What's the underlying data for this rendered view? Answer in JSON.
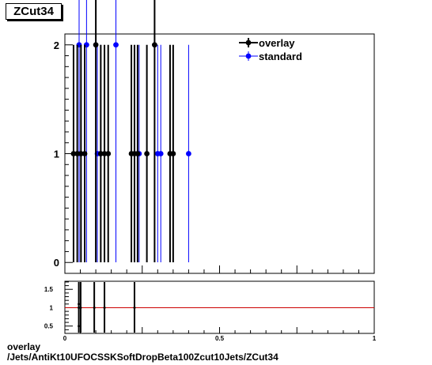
{
  "title": "ZCut34",
  "footer": {
    "line1": "overlay",
    "line2": "/Jets/AntiKt10UFOCSSKSoftDropBeta100Zcut10Jets/ZCut34"
  },
  "chart_data": [
    {
      "type": "scatter",
      "panel": "main",
      "xlim": [
        0,
        1
      ],
      "ylim": [
        -0.1,
        2.1
      ],
      "y_ticks": [
        "0",
        "1",
        "2"
      ],
      "legend_position": "top-right",
      "series": [
        {
          "name": "overlay",
          "color": "#000000",
          "x": [
            0.028,
            0.04,
            0.052,
            0.064,
            0.1,
            0.116,
            0.128,
            0.14,
            0.215,
            0.225,
            0.235,
            0.265,
            0.29,
            0.34,
            0.35
          ],
          "y": [
            1,
            1,
            1,
            1,
            2,
            1,
            1,
            1,
            1,
            1,
            1,
            1,
            2,
            1,
            1
          ]
        },
        {
          "name": "standard",
          "color": "#0000ff",
          "x": [
            0.046,
            0.07,
            0.105,
            0.115,
            0.165,
            0.24,
            0.3,
            0.31,
            0.4
          ],
          "y": [
            2,
            2,
            1,
            1,
            2,
            1,
            1,
            1,
            1
          ]
        }
      ]
    },
    {
      "type": "scatter",
      "panel": "ratio",
      "xlim": [
        0,
        1
      ],
      "ylim": [
        0.3,
        1.72
      ],
      "x_ticks": [
        "0",
        "0.5",
        "1"
      ],
      "y_ticks": [
        "0.5",
        "1",
        "1.5"
      ],
      "reference_line": 1,
      "reference_color": "#cc0000",
      "points": [
        {
          "x": 0.045,
          "y": 1.0
        },
        {
          "x": 0.051,
          "y": 1.0
        },
        {
          "x": 0.095,
          "y": 1.0
        },
        {
          "x": 0.128,
          "y": 1.0
        },
        {
          "x": 0.225,
          "y": 1.0
        }
      ],
      "extra_markers": [
        {
          "x": 0.045,
          "y": 1.1
        },
        {
          "x": 0.045,
          "y": 0.5
        }
      ]
    }
  ]
}
